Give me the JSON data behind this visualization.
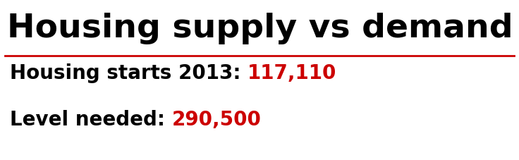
{
  "title": "Housing supply vs demand",
  "line_color": "#cc0000",
  "label1_black": "Housing starts 2013: ",
  "label1_red": "117,110",
  "label2_black": "Level needed: ",
  "label2_red": "290,500",
  "title_fontsize": 34,
  "label_fontsize": 20,
  "title_color": "#000000",
  "red_color": "#cc0000",
  "black_color": "#000000",
  "bg_color": "#ffffff"
}
